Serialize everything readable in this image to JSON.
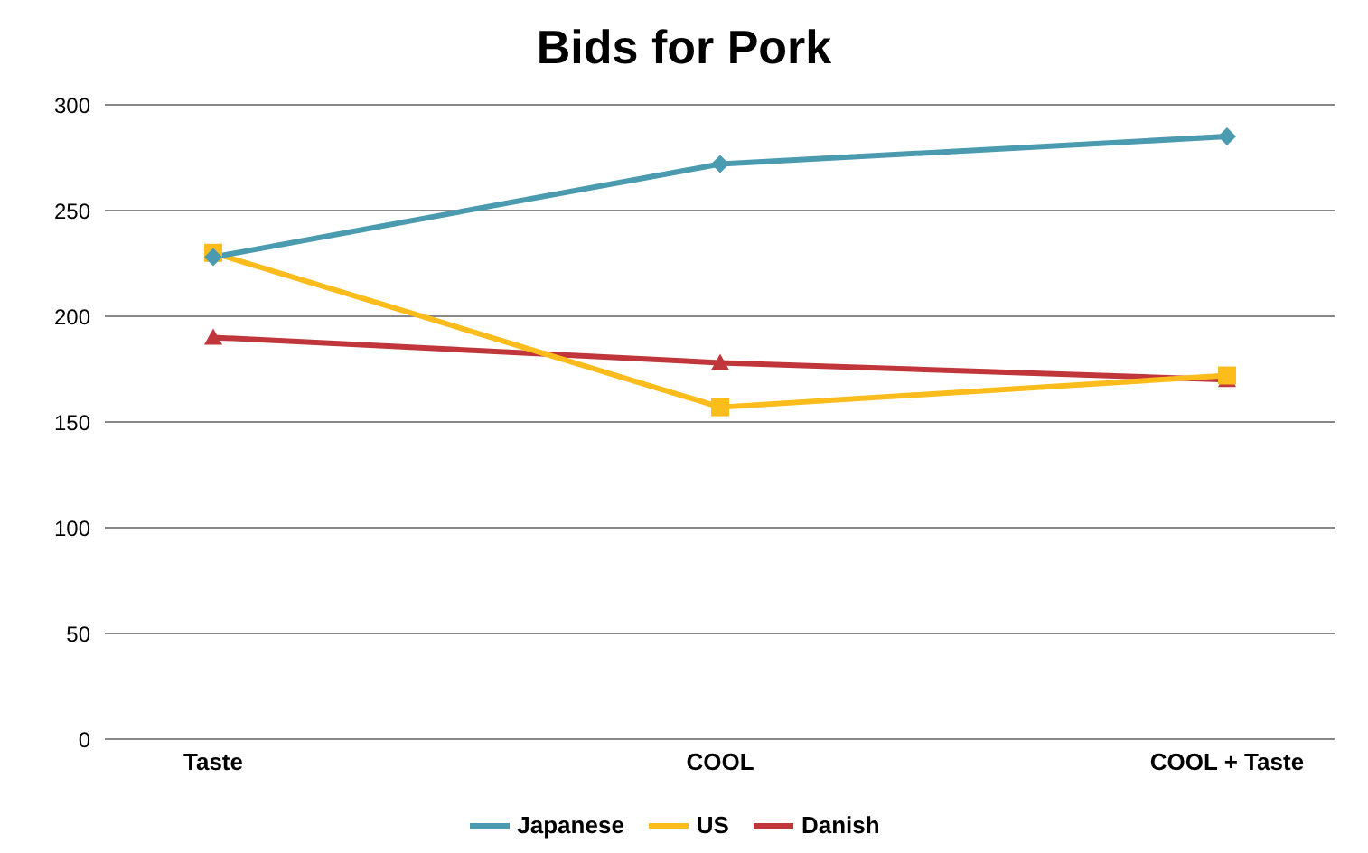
{
  "chart_data": {
    "type": "line",
    "title": "Bids for Pork",
    "categories": [
      "Taste",
      "COOL",
      "COOL + Taste"
    ],
    "series": [
      {
        "name": "Japanese",
        "color": "#4a9bb0",
        "values": [
          228,
          272,
          285
        ],
        "marker": "diamond"
      },
      {
        "name": "US",
        "color": "#fcbc1c",
        "values": [
          230,
          157,
          172
        ],
        "marker": "square"
      },
      {
        "name": "Danish",
        "color": "#c0363a",
        "values": [
          190,
          178,
          170
        ],
        "marker": "triangle"
      }
    ],
    "ylim": [
      0,
      300
    ],
    "yticks": [
      0,
      50,
      100,
      150,
      200,
      250,
      300
    ],
    "grid": "y",
    "legend": "bottom"
  }
}
